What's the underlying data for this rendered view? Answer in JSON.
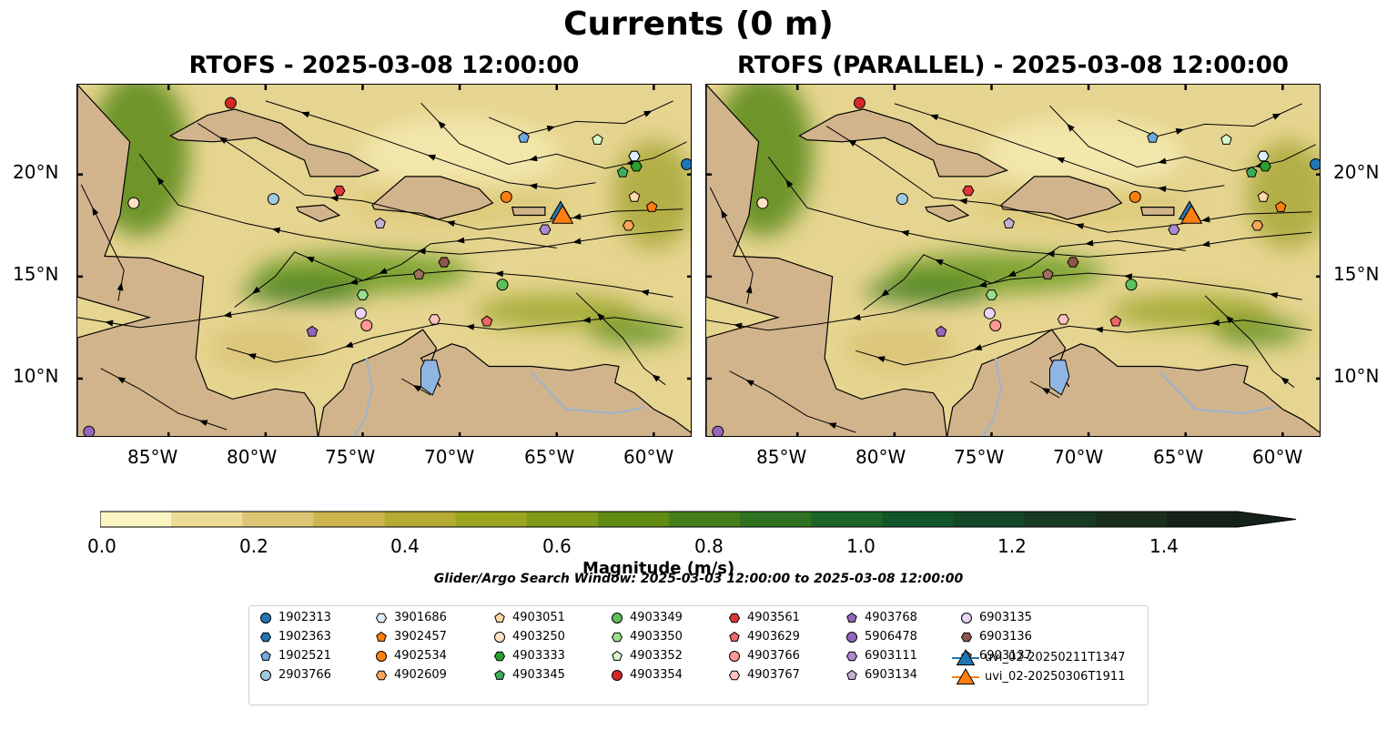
{
  "title": "Currents (0 m)",
  "panels": [
    {
      "id": "left",
      "title": "RTOFS - 2025-03-08 12:00:00"
    },
    {
      "id": "right",
      "title": "RTOFS (PARALLEL) - 2025-03-08 12:00:00"
    }
  ],
  "axes": {
    "lon_ticks": [
      "85°W",
      "80°W",
      "75°W",
      "70°W",
      "65°W",
      "60°W"
    ],
    "lat_ticks": [
      "20°N",
      "15°N",
      "10°N"
    ]
  },
  "colorbar": {
    "label": "Magnitude (m/s)",
    "tick_labels": [
      "0.0",
      "0.2",
      "0.4",
      "0.6",
      "0.8",
      "1.0",
      "1.2",
      "1.4"
    ],
    "colors": [
      "#fbf5c3",
      "#ecdc96",
      "#dcc673",
      "#cbb54c",
      "#b5aa32",
      "#9ba51f",
      "#7f9a16",
      "#608c14",
      "#447f1b",
      "#2f7322",
      "#1b6527",
      "#11562a",
      "#134727",
      "#173a22",
      "#1b2e1d",
      "#16211a"
    ]
  },
  "search_window": "Glider/Argo Search Window: 2025-03-03 12:00:00 to 2025-03-08 12:00:00",
  "legend": [
    {
      "label": "1902313",
      "marker": "circle",
      "color": "#1f77b4"
    },
    {
      "label": "1902363",
      "marker": "hexagon",
      "color": "#1f77b4"
    },
    {
      "label": "1902521",
      "marker": "pentagon",
      "color": "#6fa8dc"
    },
    {
      "label": "2903766",
      "marker": "circle",
      "color": "#9ecae1"
    },
    {
      "label": "3901686",
      "marker": "hexagon",
      "color": "#dbeeff"
    },
    {
      "label": "3902457",
      "marker": "pentagon",
      "color": "#ff7f0e"
    },
    {
      "label": "4902534",
      "marker": "circle",
      "color": "#ff7f0e"
    },
    {
      "label": "4902609",
      "marker": "hexagon",
      "color": "#ffa559"
    },
    {
      "label": "4903051",
      "marker": "pentagon",
      "color": "#ffd9a8"
    },
    {
      "label": "4903250",
      "marker": "circle",
      "color": "#ffe1c6"
    },
    {
      "label": "4903333",
      "marker": "hexagon",
      "color": "#2ca02c"
    },
    {
      "label": "4903345",
      "marker": "pentagon",
      "color": "#41ab5d"
    },
    {
      "label": "4903349",
      "marker": "circle",
      "color": "#5cc05c"
    },
    {
      "label": "4903350",
      "marker": "hexagon",
      "color": "#98df8a"
    },
    {
      "label": "4903352",
      "marker": "pentagon",
      "color": "#d9f8c8"
    },
    {
      "label": "4903354",
      "marker": "circle",
      "color": "#d62728"
    },
    {
      "label": "4903561",
      "marker": "hexagon",
      "color": "#e03535"
    },
    {
      "label": "4903629",
      "marker": "pentagon",
      "color": "#ee6666"
    },
    {
      "label": "4903766",
      "marker": "circle",
      "color": "#ff9896"
    },
    {
      "label": "4903767",
      "marker": "hexagon",
      "color": "#ffc2c0"
    },
    {
      "label": "4903768",
      "marker": "pentagon",
      "color": "#9467bd"
    },
    {
      "label": "5906478",
      "marker": "circle",
      "color": "#9467bd"
    },
    {
      "label": "6903111",
      "marker": "hexagon",
      "color": "#a98bd1"
    },
    {
      "label": "6903134",
      "marker": "pentagon",
      "color": "#c5b0d5"
    },
    {
      "label": "6903135",
      "marker": "circle",
      "color": "#ead4fa"
    },
    {
      "label": "6903136",
      "marker": "hexagon",
      "color": "#8c564b"
    },
    {
      "label": "6903137",
      "marker": "pentagon",
      "color": "#a0715f"
    },
    {
      "label": "uvi_02-20250211T1347",
      "marker": "triangle",
      "color": "#1f77b4"
    },
    {
      "label": "uvi_02-20250306T1911",
      "marker": "triangle",
      "color": "#ff7f0e"
    }
  ],
  "map_colors": {
    "land": "#d2b48c",
    "lake": "#8fb6e3",
    "river": "#9ab3cc"
  },
  "map_points": [
    {
      "label": "1902313",
      "lon": -58.3,
      "lat": 20.5
    },
    {
      "label": "1902363",
      "lon": -61.0,
      "lat": 20.9
    },
    {
      "label": "1902521",
      "lon": -66.7,
      "lat": 21.8
    },
    {
      "label": "2903766",
      "lon": -79.6,
      "lat": 18.8
    },
    {
      "label": "3901686",
      "lon": -61.0,
      "lat": 20.9
    },
    {
      "label": "3902457",
      "lon": -60.1,
      "lat": 18.4
    },
    {
      "label": "4902534",
      "lon": -67.6,
      "lat": 18.9
    },
    {
      "label": "4902609",
      "lon": -61.3,
      "lat": 17.5
    },
    {
      "label": "4903051",
      "lon": -61.0,
      "lat": 18.9
    },
    {
      "label": "4903250",
      "lon": -86.8,
      "lat": 18.6
    },
    {
      "label": "4903333",
      "lon": -60.9,
      "lat": 20.4
    },
    {
      "label": "4903345",
      "lon": -61.6,
      "lat": 20.1
    },
    {
      "label": "4903349",
      "lon": -67.8,
      "lat": 14.6
    },
    {
      "label": "4903350",
      "lon": -75.0,
      "lat": 14.1
    },
    {
      "label": "4903352",
      "lon": -62.9,
      "lat": 21.7
    },
    {
      "label": "4903354",
      "lon": -81.8,
      "lat": 23.5
    },
    {
      "label": "4903561",
      "lon": -76.2,
      "lat": 19.2
    },
    {
      "label": "4903629",
      "lon": -68.6,
      "lat": 12.8
    },
    {
      "label": "4903766",
      "lon": -74.8,
      "lat": 12.6
    },
    {
      "label": "4903767",
      "lon": -71.3,
      "lat": 12.9
    },
    {
      "label": "4903768",
      "lon": -77.6,
      "lat": 12.3
    },
    {
      "label": "5906478",
      "lon": -89.1,
      "lat": 7.4
    },
    {
      "label": "6903111",
      "lon": -65.6,
      "lat": 17.3
    },
    {
      "label": "6903134",
      "lon": -74.1,
      "lat": 17.6
    },
    {
      "label": "6903135",
      "lon": -75.1,
      "lat": 13.2
    },
    {
      "label": "6903136",
      "lon": -70.8,
      "lat": 15.7
    },
    {
      "label": "6903137",
      "lon": -72.1,
      "lat": 15.1
    },
    {
      "label": "uvi_02-20250211T1347",
      "lon": -64.8,
      "lat": 18.1
    },
    {
      "label": "uvi_02-20250306T1911",
      "lon": -64.7,
      "lat": 17.9
    }
  ]
}
